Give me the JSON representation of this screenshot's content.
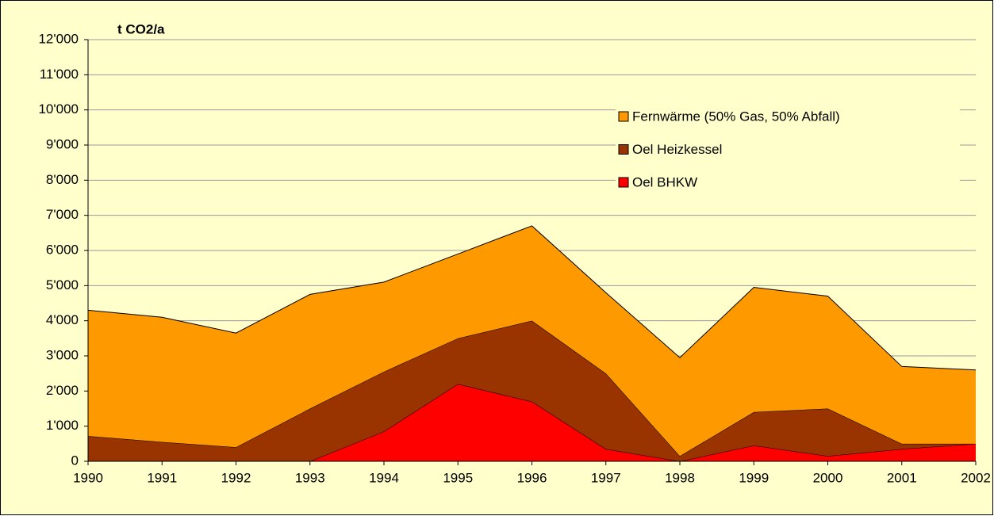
{
  "chart_data": {
    "type": "stacked-area",
    "y_label": "t CO2/a",
    "x": [
      1990,
      1991,
      1992,
      1993,
      1994,
      1995,
      1996,
      1997,
      1998,
      1999,
      2000,
      2001,
      2002
    ],
    "xlim": [
      1990,
      2002
    ],
    "xticks": [
      1990,
      1991,
      1992,
      1993,
      1994,
      1995,
      1996,
      1997,
      1998,
      1999,
      2000,
      2001,
      2002
    ],
    "ylim": [
      0,
      12000
    ],
    "yticks": [
      {
        "value": 0,
        "label": "0"
      },
      {
        "value": 1000,
        "label": "1'000"
      },
      {
        "value": 2000,
        "label": "2'000"
      },
      {
        "value": 3000,
        "label": "3'000"
      },
      {
        "value": 4000,
        "label": "4'000"
      },
      {
        "value": 5000,
        "label": "5'000"
      },
      {
        "value": 6000,
        "label": "6'000"
      },
      {
        "value": 7000,
        "label": "7'000"
      },
      {
        "value": 8000,
        "label": "8'000"
      },
      {
        "value": 9000,
        "label": "9'000"
      },
      {
        "value": 10000,
        "label": "10'000"
      },
      {
        "value": 11000,
        "label": "11'000"
      },
      {
        "value": 12000,
        "label": "12'000"
      }
    ],
    "grid": true,
    "legend": "upper right",
    "series": [
      {
        "name": "Oel BHKW",
        "color": "#ff0000",
        "values": [
          0,
          0,
          0,
          0,
          850,
          2200,
          1700,
          350,
          0,
          450,
          150,
          350,
          500
        ]
      },
      {
        "name": "Oel Heizkessel",
        "color": "#993300",
        "values": [
          720,
          550,
          400,
          1500,
          1700,
          1300,
          2300,
          2150,
          150,
          950,
          1350,
          150,
          0
        ]
      },
      {
        "name": "Fernwärme (50% Gas, 50% Abfall)",
        "color": "#ff9900",
        "values": [
          3580,
          3550,
          3250,
          3250,
          2550,
          2400,
          2700,
          2300,
          2800,
          3550,
          3200,
          2200,
          2100
        ]
      }
    ]
  }
}
